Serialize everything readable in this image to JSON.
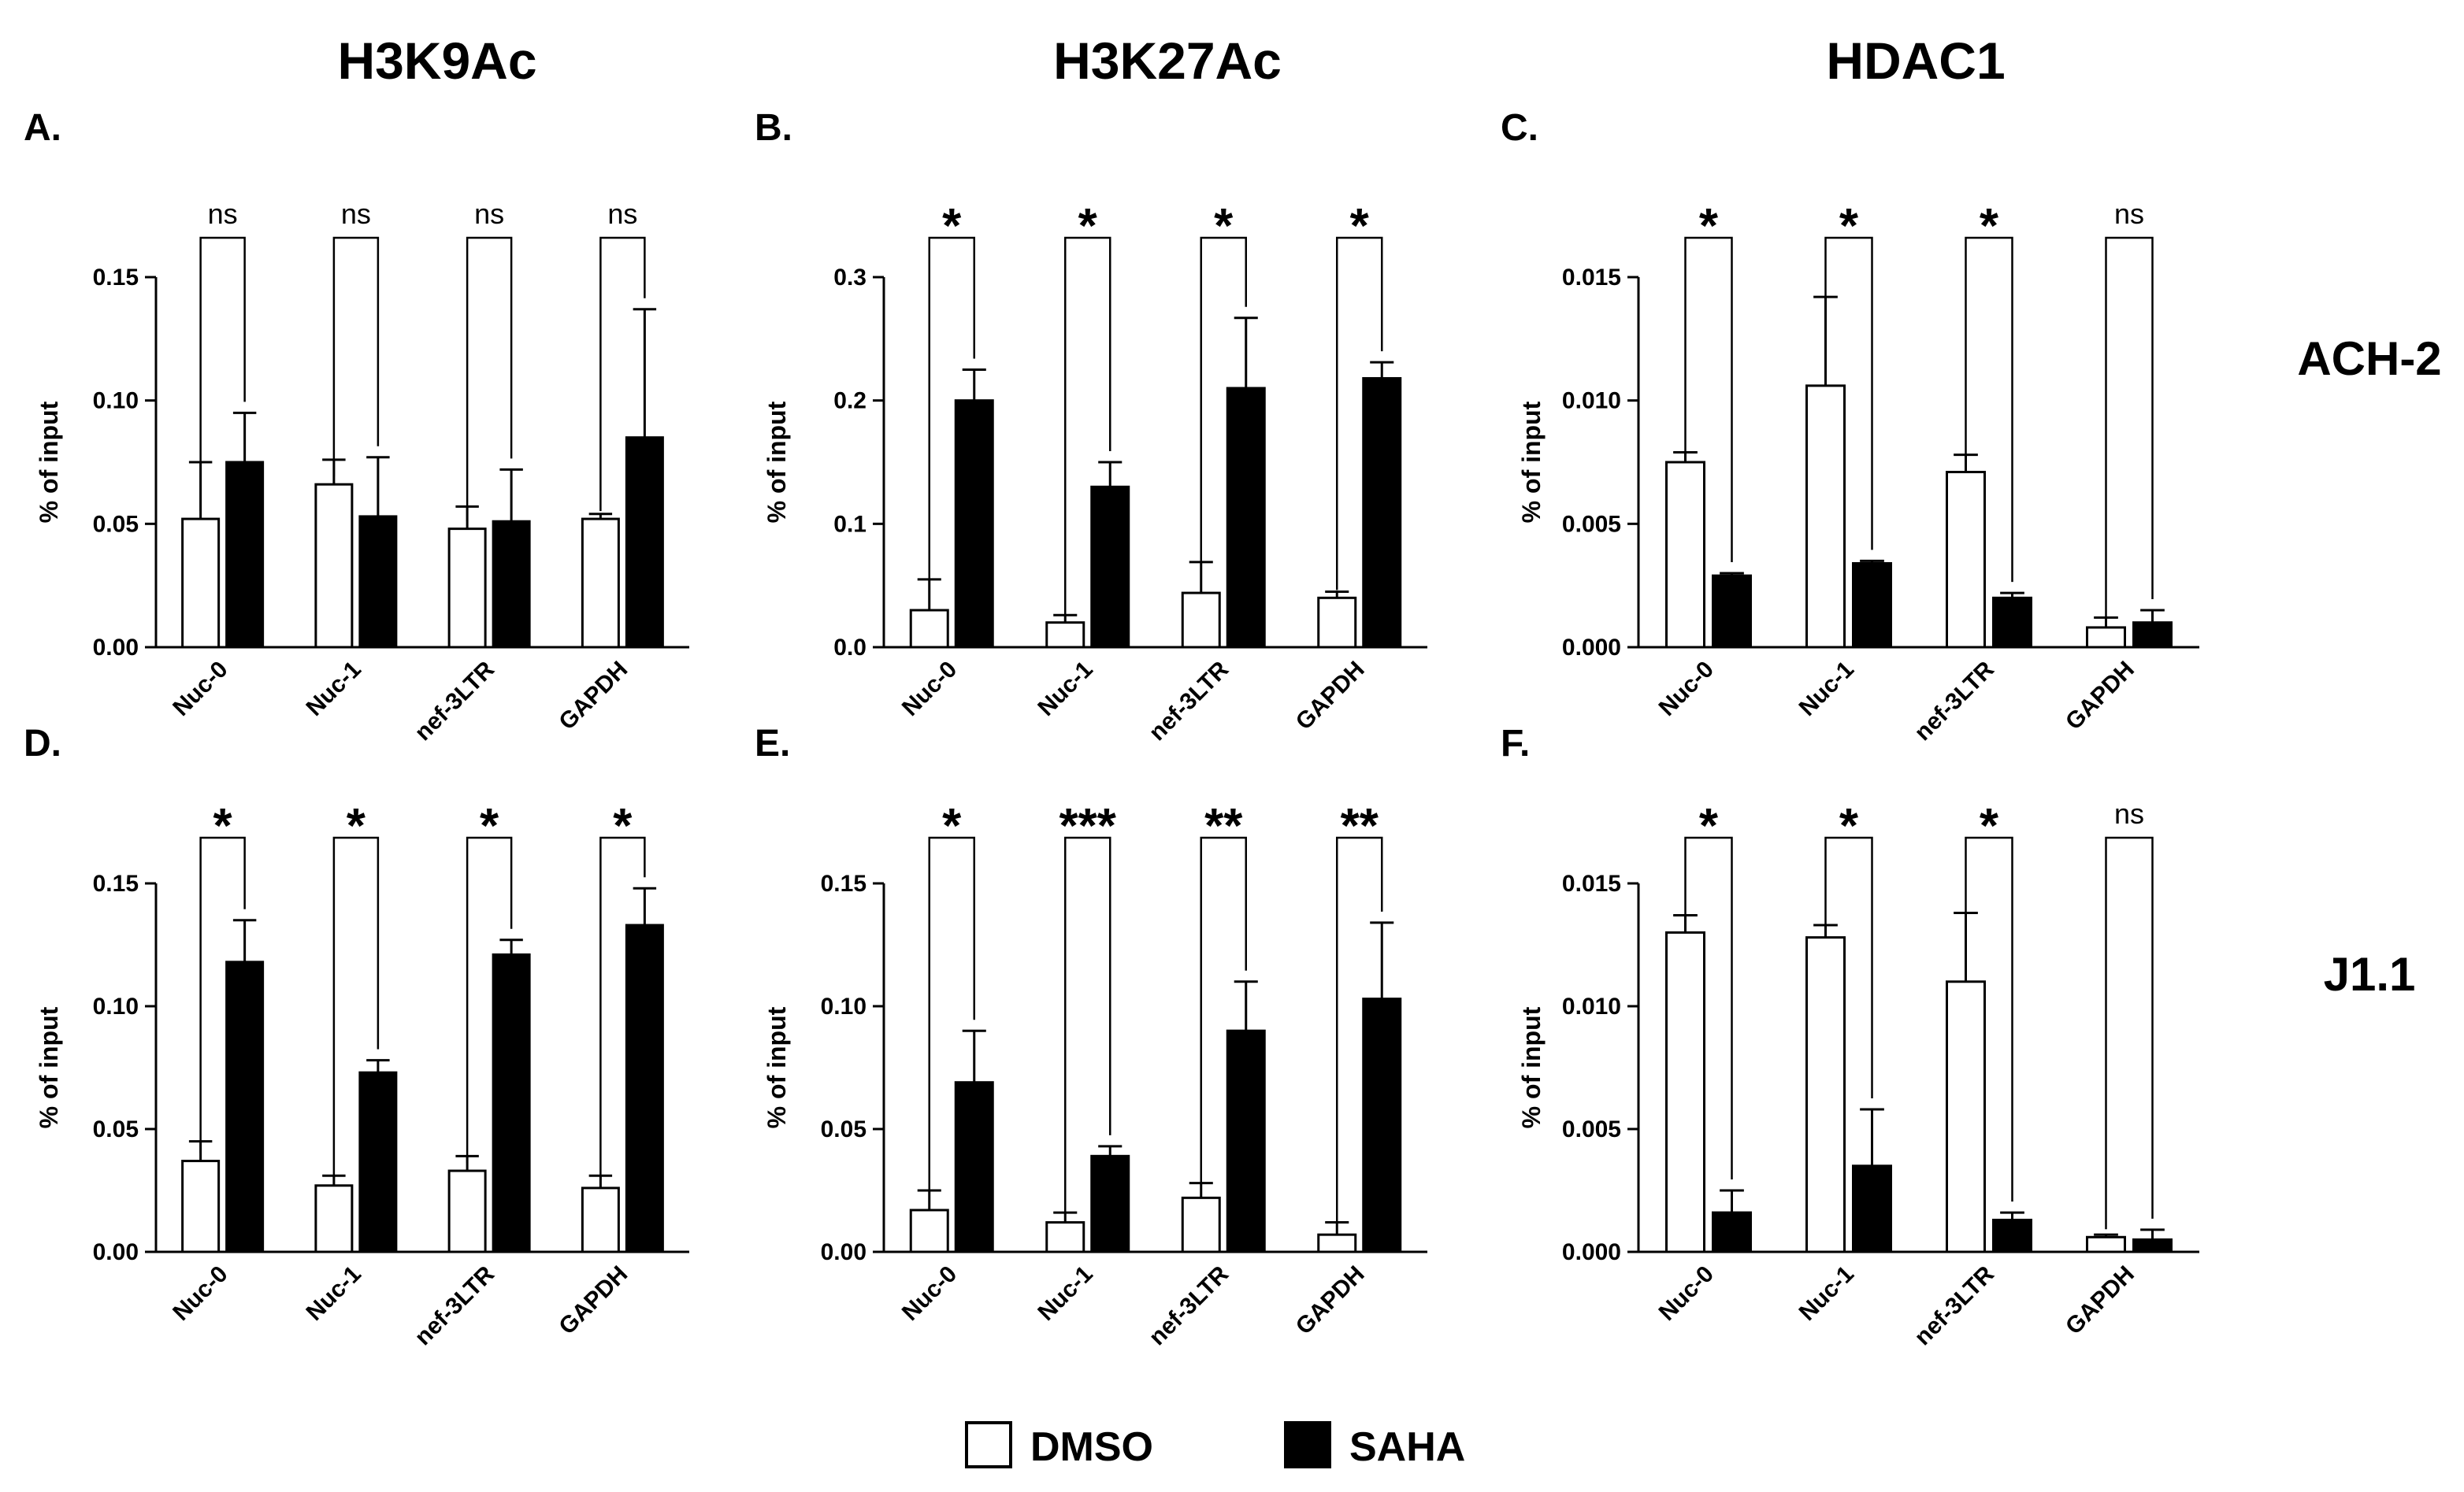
{
  "colors": {
    "dmso": "#ffffff",
    "saha": "#000000",
    "ink": "#000000"
  },
  "column_titles": [
    "H3K9Ac",
    "H3K27Ac",
    "HDAC1"
  ],
  "row_labels": [
    "ACH-2",
    "J1.1"
  ],
  "legend": [
    {
      "label": "DMSO",
      "color": "#ffffff"
    },
    {
      "label": "SAHA",
      "color": "#000000"
    }
  ],
  "chart_data": [
    {
      "type": "bar",
      "panel": "A.",
      "title": "H3K9Ac",
      "row": "ACH-2",
      "ylabel": "% of input",
      "xlabel": "",
      "ylim": [
        0,
        0.15
      ],
      "yticks": [
        "0.00",
        "0.05",
        "0.10",
        "0.15"
      ],
      "categories": [
        "Nuc-0",
        "Nuc-1",
        "nef-3LTR",
        "GAPDH"
      ],
      "series": [
        {
          "name": "DMSO",
          "values": [
            0.052,
            0.066,
            0.048,
            0.052
          ],
          "errors": [
            0.023,
            0.01,
            0.009,
            0.002
          ]
        },
        {
          "name": "SAHA",
          "values": [
            0.075,
            0.053,
            0.051,
            0.085
          ],
          "errors": [
            0.02,
            0.024,
            0.021,
            0.052
          ]
        }
      ],
      "significance": [
        "ns",
        "ns",
        "ns",
        "ns"
      ]
    },
    {
      "type": "bar",
      "panel": "B.",
      "title": "H3K27Ac",
      "row": "ACH-2",
      "ylabel": "% of input",
      "xlabel": "",
      "ylim": [
        0,
        0.3
      ],
      "yticks": [
        "0.0",
        "0.1",
        "0.2",
        "0.3"
      ],
      "categories": [
        "Nuc-0",
        "Nuc-1",
        "nef-3LTR",
        "GAPDH"
      ],
      "series": [
        {
          "name": "DMSO",
          "values": [
            0.03,
            0.02,
            0.044,
            0.04
          ],
          "errors": [
            0.025,
            0.006,
            0.025,
            0.005
          ]
        },
        {
          "name": "SAHA",
          "values": [
            0.2,
            0.13,
            0.21,
            0.218
          ],
          "errors": [
            0.025,
            0.02,
            0.057,
            0.013
          ]
        }
      ],
      "significance": [
        "*",
        "*",
        "*",
        "*"
      ]
    },
    {
      "type": "bar",
      "panel": "C.",
      "title": "HDAC1",
      "row": "ACH-2",
      "ylabel": "% of input",
      "xlabel": "",
      "ylim": [
        0,
        0.015
      ],
      "yticks": [
        "0.000",
        "0.005",
        "0.010",
        "0.015"
      ],
      "categories": [
        "Nuc-0",
        "Nuc-1",
        "nef-3LTR",
        "GAPDH"
      ],
      "series": [
        {
          "name": "DMSO",
          "values": [
            0.0075,
            0.0106,
            0.0071,
            0.0008
          ],
          "errors": [
            0.0004,
            0.0036,
            0.0007,
            0.0004
          ]
        },
        {
          "name": "SAHA",
          "values": [
            0.0029,
            0.0034,
            0.002,
            0.001
          ],
          "errors": [
            0.0001,
            0.0001,
            0.0002,
            0.0005
          ]
        }
      ],
      "significance": [
        "*",
        "*",
        "*",
        "ns"
      ]
    },
    {
      "type": "bar",
      "panel": "D.",
      "title": "H3K9Ac",
      "row": "J1.1",
      "ylabel": "% of input",
      "xlabel": "",
      "ylim": [
        0,
        0.15
      ],
      "yticks": [
        "0.00",
        "0.05",
        "0.10",
        "0.15"
      ],
      "categories": [
        "Nuc-0",
        "Nuc-1",
        "nef-3LTR",
        "GAPDH"
      ],
      "series": [
        {
          "name": "DMSO",
          "values": [
            0.037,
            0.027,
            0.033,
            0.026
          ],
          "errors": [
            0.008,
            0.004,
            0.006,
            0.005
          ]
        },
        {
          "name": "SAHA",
          "values": [
            0.118,
            0.073,
            0.121,
            0.133
          ],
          "errors": [
            0.017,
            0.005,
            0.006,
            0.015
          ]
        }
      ],
      "significance": [
        "*",
        "*",
        "*",
        "*"
      ]
    },
    {
      "type": "bar",
      "panel": "E.",
      "title": "H3K27Ac",
      "row": "J1.1",
      "ylabel": "% of input",
      "xlabel": "",
      "ylim": [
        0,
        0.15
      ],
      "yticks": [
        "0.00",
        "0.05",
        "0.10",
        "0.15"
      ],
      "categories": [
        "Nuc-0",
        "Nuc-1",
        "nef-3LTR",
        "GAPDH"
      ],
      "series": [
        {
          "name": "DMSO",
          "values": [
            0.017,
            0.012,
            0.022,
            0.007
          ],
          "errors": [
            0.008,
            0.004,
            0.006,
            0.005
          ]
        },
        {
          "name": "SAHA",
          "values": [
            0.069,
            0.039,
            0.09,
            0.103
          ],
          "errors": [
            0.021,
            0.004,
            0.02,
            0.031
          ]
        }
      ],
      "significance": [
        "*",
        "***",
        "**",
        "**"
      ]
    },
    {
      "type": "bar",
      "panel": "F.",
      "title": "HDAC1",
      "row": "J1.1",
      "ylabel": "% of input",
      "xlabel": "",
      "ylim": [
        0,
        0.015
      ],
      "yticks": [
        "0.000",
        "0.005",
        "0.010",
        "0.015"
      ],
      "categories": [
        "Nuc-0",
        "Nuc-1",
        "nef-3LTR",
        "GAPDH"
      ],
      "series": [
        {
          "name": "DMSO",
          "values": [
            0.013,
            0.0128,
            0.011,
            0.0006
          ],
          "errors": [
            0.0007,
            0.0005,
            0.0028,
            0.0001
          ]
        },
        {
          "name": "SAHA",
          "values": [
            0.0016,
            0.0035,
            0.0013,
            0.0005
          ],
          "errors": [
            0.0009,
            0.0023,
            0.0003,
            0.0004
          ]
        }
      ],
      "significance": [
        "*",
        "*",
        "*",
        "ns"
      ]
    }
  ]
}
